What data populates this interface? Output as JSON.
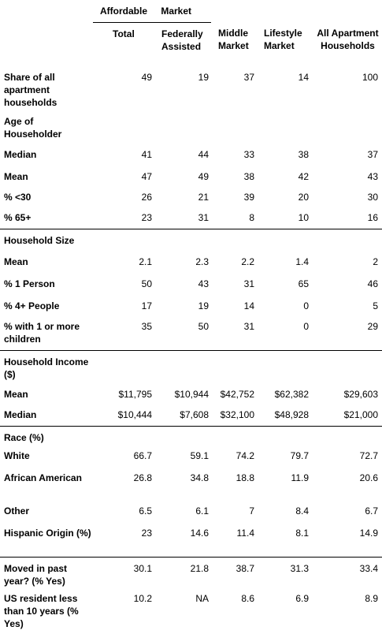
{
  "header": {
    "group": "Affordable Market",
    "columns": [
      "Total",
      "Federally Assisted",
      "Middle Market",
      "Lifestyle Market",
      "All Apartment Households"
    ]
  },
  "table": {
    "sections": [
      {
        "rows": [
          {
            "label": "Share of all apartment households",
            "values": [
              "49",
              "19",
              "37",
              "14",
              "100"
            ]
          }
        ]
      },
      {
        "title": "Age of Householder",
        "rows": [
          {
            "label": "Median",
            "values": [
              "41",
              "44",
              "33",
              "38",
              "37"
            ]
          },
          {
            "label": "Mean",
            "values": [
              "47",
              "49",
              "38",
              "42",
              "43"
            ]
          },
          {
            "label": "% <30",
            "values": [
              "26",
              "21",
              "39",
              "20",
              "30"
            ]
          },
          {
            "label": "% 65+",
            "values": [
              "23",
              "31",
              "8",
              "10",
              "16"
            ]
          }
        ]
      },
      {
        "title": "Household Size",
        "rows": [
          {
            "label": "Mean",
            "values": [
              "2.1",
              "2.3",
              "2.2",
              "1.4",
              "2"
            ]
          },
          {
            "label": "% 1 Person",
            "values": [
              "50",
              "43",
              "31",
              "65",
              "46"
            ]
          },
          {
            "label": "% 4+ People",
            "values": [
              "17",
              "19",
              "14",
              "0",
              "5"
            ]
          },
          {
            "label": "% with 1 or more children",
            "values": [
              "35",
              "50",
              "31",
              "0",
              "29"
            ]
          }
        ]
      },
      {
        "title": "Household Income ($)",
        "rows": [
          {
            "label": "Mean",
            "values": [
              "$11,795",
              "$10,944",
              "$42,752",
              "$62,382",
              "$29,603"
            ]
          },
          {
            "label": "Median",
            "values": [
              "$10,444",
              "$7,608",
              "$32,100",
              "$48,928",
              "$21,000"
            ]
          }
        ]
      },
      {
        "title": "Race (%)",
        "rows": [
          {
            "label": "White",
            "values": [
              "66.7",
              "59.1",
              "74.2",
              "79.7",
              "72.7"
            ]
          },
          {
            "label": "African American",
            "values": [
              "26.8",
              "34.8",
              "18.8",
              "11.9",
              "20.6"
            ]
          },
          {
            "label": "Other",
            "values": [
              "6.5",
              "6.1",
              "7",
              "8.4",
              "6.7"
            ]
          },
          {
            "label": "Hispanic Origin (%)",
            "values": [
              "23",
              "14.6",
              "11.4",
              "8.1",
              "14.9"
            ]
          }
        ]
      },
      {
        "rows": [
          {
            "label": "Moved in past year? (% Yes)",
            "values": [
              "30.1",
              "21.8",
              "38.7",
              "31.3",
              "33.4"
            ]
          },
          {
            "label": "US resident less than 10 years (% Yes)",
            "values": [
              "10.2",
              "NA",
              "8.6",
              "6.9",
              "8.9"
            ]
          }
        ]
      }
    ]
  }
}
